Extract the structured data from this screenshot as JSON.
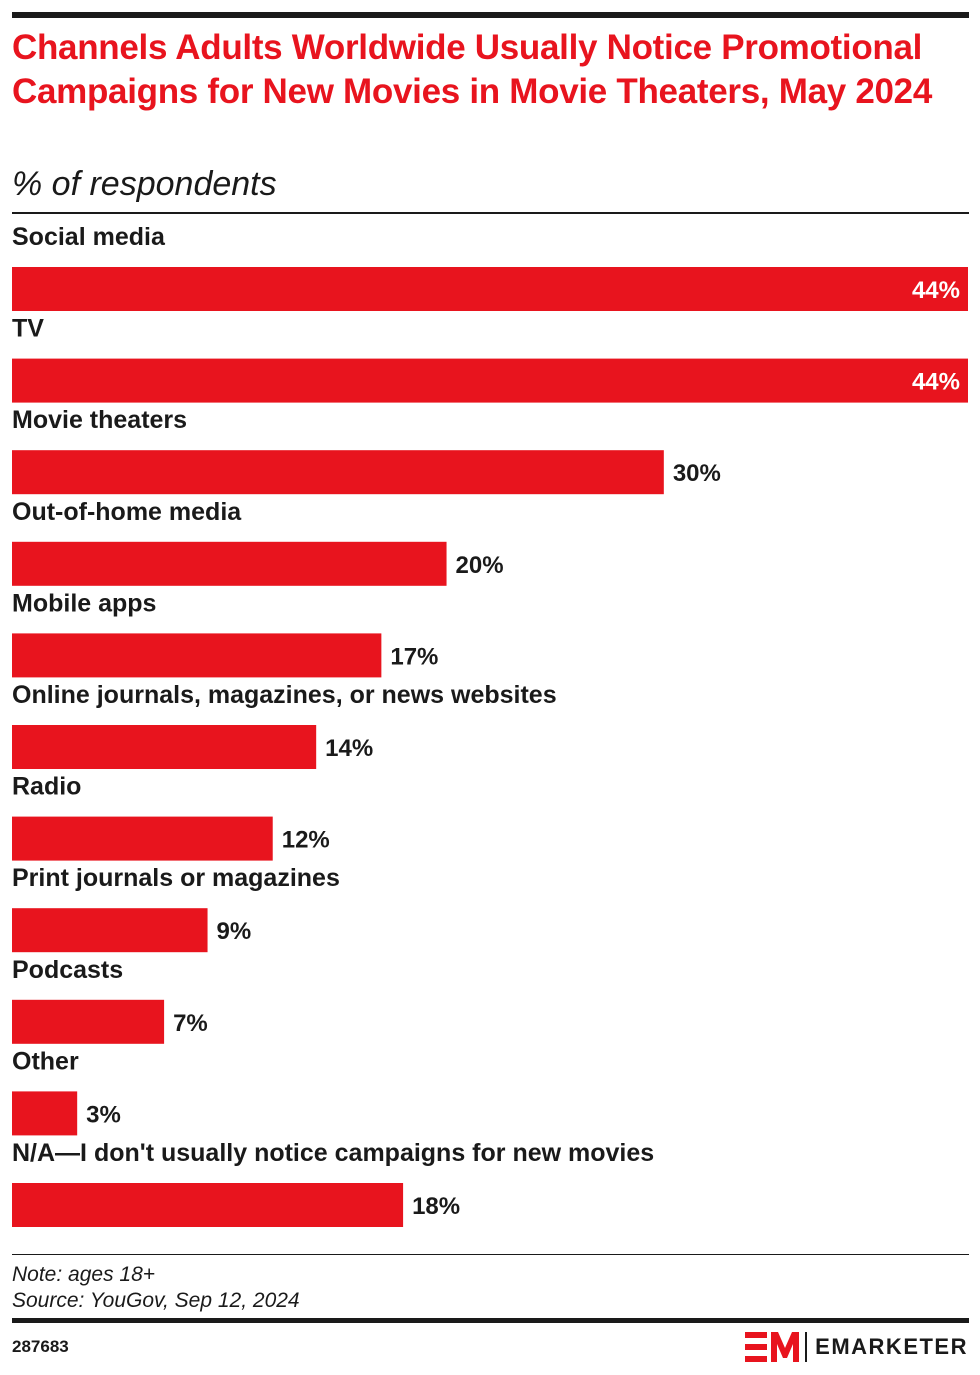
{
  "header": {
    "title": "Channels Adults Worldwide Usually Notice Promotional Campaigns for New Movies in Movie Theaters, May 2024",
    "subtitle": "% of respondents"
  },
  "chart_data": {
    "type": "bar",
    "orientation": "horizontal",
    "title": "Channels Adults Worldwide Usually Notice Promotional Campaigns for New Movies in Movie Theaters, May 2024",
    "subtitle": "% of respondents",
    "xlabel": "",
    "ylabel": "",
    "xlim": [
      0,
      44
    ],
    "grid": false,
    "legend": "none",
    "bar_color": "#e8141e",
    "categories": [
      "Social media",
      "TV",
      "Movie theaters",
      "Out-of-home media",
      "Mobile apps",
      "Online journals, magazines, or news websites",
      "Radio",
      "Print journals or magazines",
      "Podcasts",
      "Other",
      "N/A—I don't usually notice campaigns for new movies"
    ],
    "values": [
      44,
      44,
      30,
      20,
      17,
      14,
      12,
      9,
      7,
      3,
      18
    ],
    "value_labels": [
      "44%",
      "44%",
      "30%",
      "20%",
      "17%",
      "14%",
      "12%",
      "9%",
      "7%",
      "3%",
      "18%"
    ]
  },
  "footer": {
    "note": "Note: ages 18+",
    "source": "Source: YouGov, Sep 12, 2024",
    "chart_id": "287683",
    "brand": "EMARKETER"
  },
  "colors": {
    "accent": "#e8141e",
    "text": "#1a1a1a"
  }
}
